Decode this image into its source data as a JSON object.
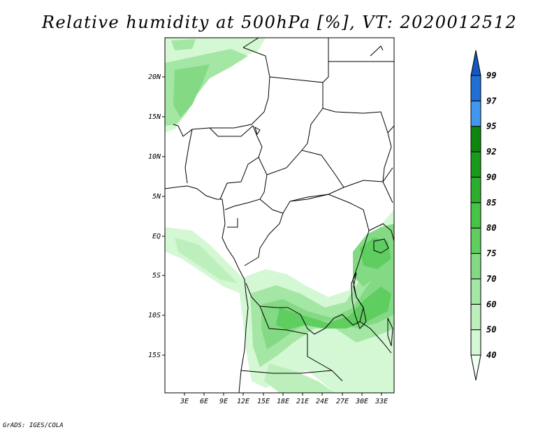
{
  "title": "Relative humidity at 500hPa [%], VT: 2020012512",
  "credit": "GrADS: IGES/COLA",
  "map": {
    "lat_labels": [
      "20N",
      "15N",
      "10N",
      "5N",
      "EQ",
      "5S",
      "10S",
      "15S"
    ],
    "lon_labels": [
      "3E",
      "6E",
      "9E",
      "12E",
      "15E",
      "18E",
      "21E",
      "24E",
      "27E",
      "30E",
      "33E"
    ]
  },
  "colorbar": {
    "levels": [
      "40",
      "50",
      "60",
      "70",
      "75",
      "80",
      "85",
      "90",
      "92",
      "95",
      "97",
      "99"
    ],
    "colors": [
      "#f0fff0",
      "#d4f7d4",
      "#bdefbd",
      "#a4e6a4",
      "#84da84",
      "#5fcd5f",
      "#45c445",
      "#2eae2e",
      "#1a9a1a",
      "#0e860e",
      "#3f97ef",
      "#1f6fd6",
      "#1557c0"
    ]
  },
  "chart_data": {
    "type": "heatmap",
    "title": "Relative humidity at 500hPa [%], VT: 2020012512",
    "variable": "Relative humidity at 500hPa",
    "units": "%",
    "valid_time": "2020012512",
    "x_ticks": [
      "3E",
      "6E",
      "9E",
      "12E",
      "15E",
      "18E",
      "21E",
      "24E",
      "27E",
      "30E",
      "33E"
    ],
    "y_ticks": [
      "20N",
      "15N",
      "10N",
      "5N",
      "EQ",
      "5S",
      "10S",
      "15S"
    ],
    "contour_levels": [
      40,
      50,
      60,
      70,
      75,
      80,
      85,
      90,
      92,
      95,
      97,
      99
    ]
  }
}
